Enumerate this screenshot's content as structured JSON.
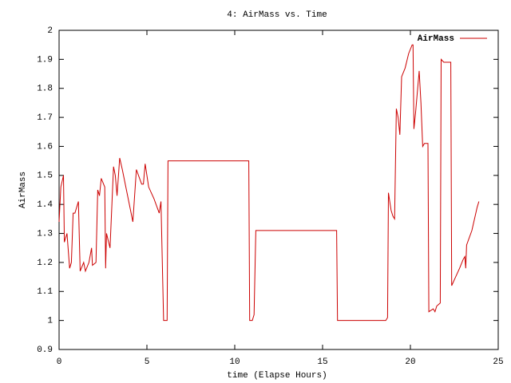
{
  "chart_data": {
    "type": "line",
    "title": "4: AirMass vs. Time",
    "xlabel": "time (Elapse Hours)",
    "ylabel": "AirMass",
    "xlim": [
      0,
      25
    ],
    "ylim": [
      0.9,
      2
    ],
    "xticks": [
      0,
      5,
      10,
      15,
      20,
      25
    ],
    "yticks": [
      0.9,
      1,
      1.1,
      1.2,
      1.3,
      1.4,
      1.5,
      1.6,
      1.7,
      1.8,
      1.9,
      2
    ],
    "legend": "upper right",
    "x": [
      0.0,
      0.1,
      0.25,
      0.3,
      0.45,
      0.6,
      0.7,
      0.8,
      0.9,
      1.1,
      1.2,
      1.4,
      1.5,
      1.7,
      1.85,
      1.9,
      2.1,
      2.2,
      2.3,
      2.4,
      2.6,
      2.65,
      2.7,
      2.9,
      3.1,
      3.2,
      3.3,
      3.45,
      3.6,
      4.2,
      4.4,
      4.7,
      4.8,
      4.9,
      5.1,
      5.4,
      5.7,
      5.8,
      5.95,
      6.15,
      6.2,
      10.8,
      10.85,
      11.0,
      11.1,
      11.2,
      15.8,
      15.85,
      18.6,
      18.7,
      18.75,
      18.9,
      19.0,
      19.1,
      19.2,
      19.3,
      19.4,
      19.5,
      19.7,
      19.9,
      20.1,
      20.15,
      20.2,
      20.3,
      20.5,
      20.6,
      20.7,
      20.8,
      21.0,
      21.05,
      21.3,
      21.4,
      21.5,
      21.7,
      21.75,
      21.9,
      22.3,
      22.35,
      22.5,
      22.8,
      23.0,
      23.1,
      23.15,
      23.2,
      23.5,
      23.8,
      23.9
    ],
    "series": [
      {
        "name": "AirMass",
        "color": "#cc0000",
        "values": [
          1.34,
          1.46,
          1.5,
          1.27,
          1.3,
          1.18,
          1.2,
          1.37,
          1.37,
          1.41,
          1.17,
          1.2,
          1.17,
          1.2,
          1.25,
          1.19,
          1.2,
          1.45,
          1.43,
          1.49,
          1.46,
          1.18,
          1.3,
          1.25,
          1.53,
          1.5,
          1.43,
          1.56,
          1.52,
          1.34,
          1.52,
          1.47,
          1.47,
          1.54,
          1.46,
          1.42,
          1.37,
          1.41,
          1.0,
          1.0,
          1.55,
          1.55,
          1.0,
          1.0,
          1.02,
          1.31,
          1.31,
          1.0,
          1.0,
          1.01,
          1.44,
          1.38,
          1.36,
          1.35,
          1.73,
          1.7,
          1.64,
          1.84,
          1.87,
          1.92,
          1.95,
          1.95,
          1.66,
          1.72,
          1.86,
          1.75,
          1.6,
          1.61,
          1.61,
          1.03,
          1.04,
          1.03,
          1.05,
          1.06,
          1.9,
          1.89,
          1.89,
          1.12,
          1.14,
          1.18,
          1.21,
          1.22,
          1.18,
          1.26,
          1.31,
          1.39,
          1.41
        ]
      }
    ]
  }
}
